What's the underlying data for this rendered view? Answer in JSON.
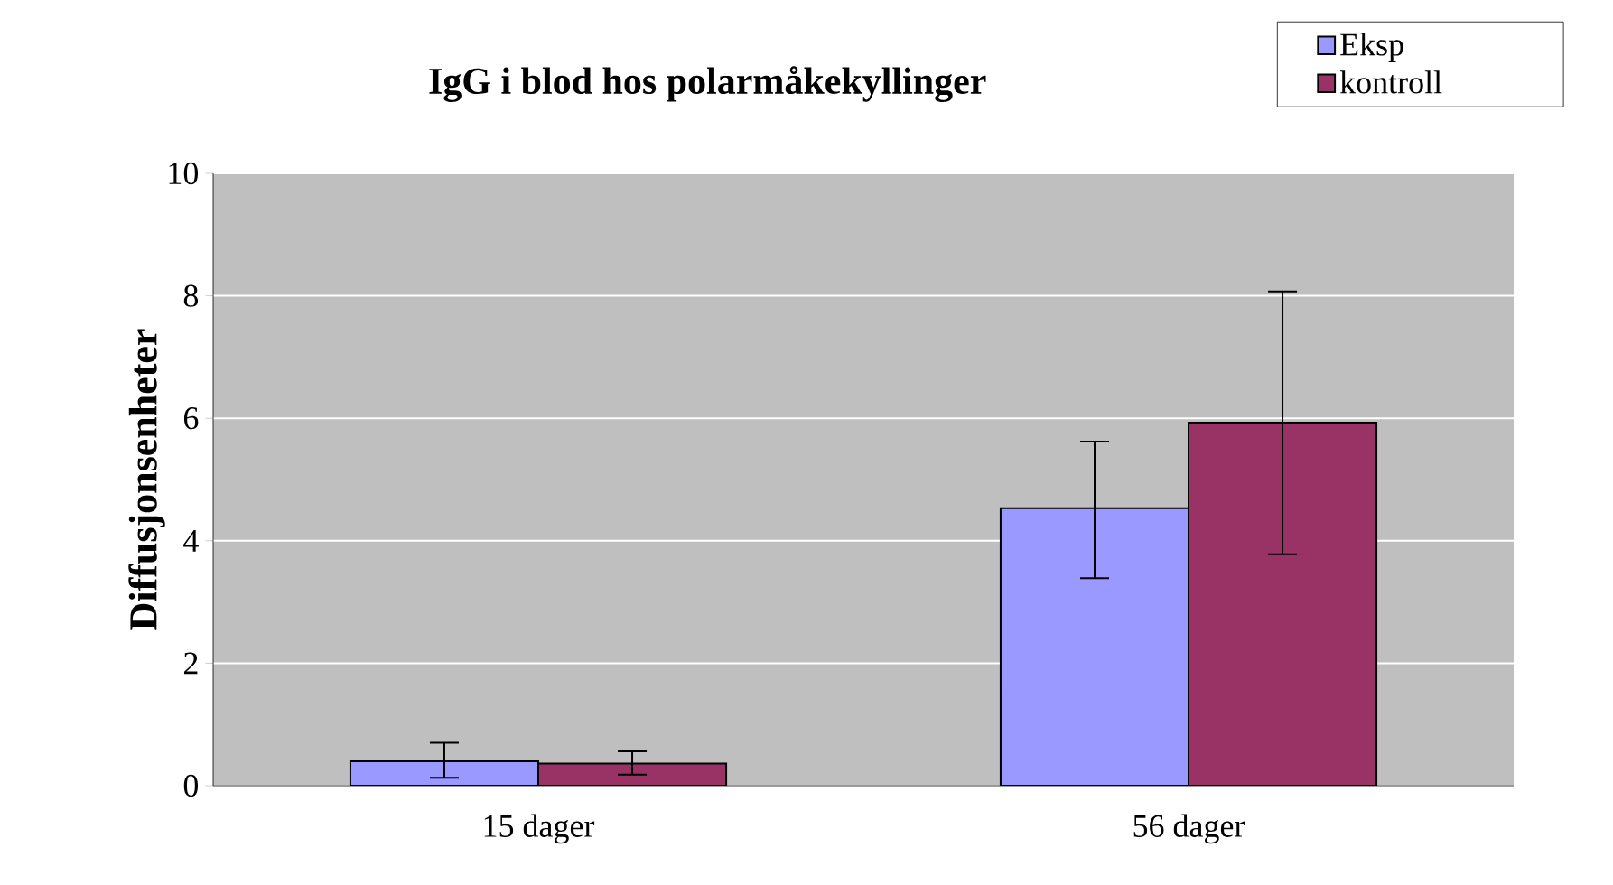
{
  "chart_data": {
    "type": "bar",
    "title": "IgG i blod hos polarmåkekyllinger",
    "ylabel": "Diffusjonsenheter",
    "categories": [
      "15 dager",
      "56 dager"
    ],
    "series": [
      {
        "name": "Eksp",
        "color": "#9999ff",
        "values": [
          0.4,
          4.53
        ],
        "errors": [
          [
            0.13,
            0.7
          ],
          [
            3.39,
            5.62
          ]
        ]
      },
      {
        "name": "kontroll",
        "color": "#993366",
        "values": [
          0.36,
          5.93
        ],
        "errors": [
          [
            0.18,
            0.56
          ],
          [
            3.78,
            8.07
          ]
        ]
      }
    ],
    "ylim": [
      0,
      10
    ],
    "yticks": [
      0,
      2,
      4,
      6,
      8,
      10
    ],
    "grid": "y",
    "legend": "top right"
  }
}
